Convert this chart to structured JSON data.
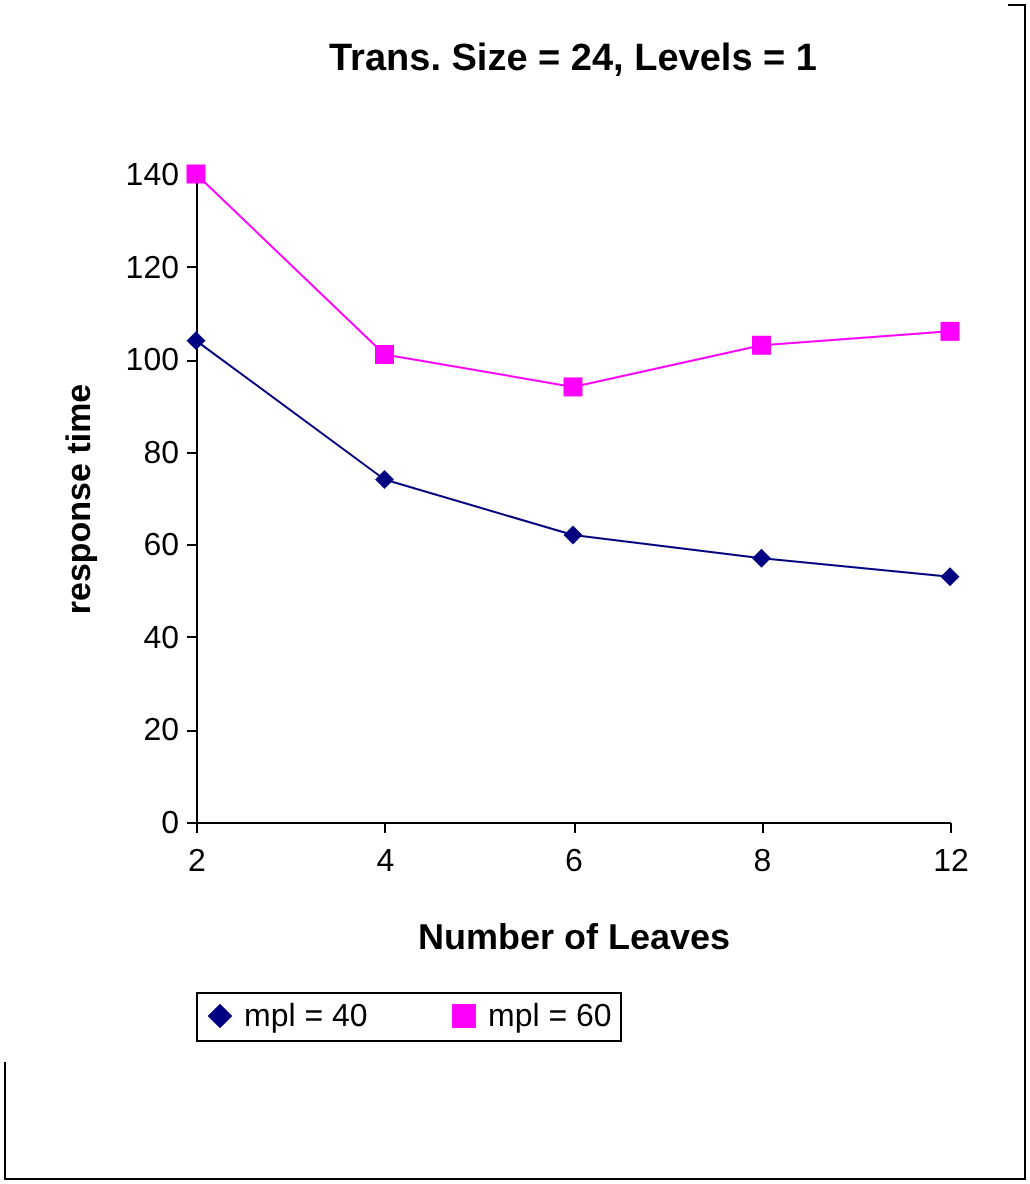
{
  "chart_data": {
    "type": "line",
    "title": "Trans. Size = 24, Levels = 1",
    "xlabel": "Number of Leaves",
    "ylabel": "response  time",
    "categories": [
      "2",
      "4",
      "6",
      "8",
      "12"
    ],
    "series": [
      {
        "name": "mpl = 40",
        "color": "#000080",
        "marker": "diamond",
        "values": [
          104,
          74,
          62,
          57,
          53
        ]
      },
      {
        "name": "mpl = 60",
        "color": "#ff00ff",
        "marker": "square",
        "values": [
          140,
          101,
          94,
          103,
          106
        ]
      }
    ],
    "ylim": [
      0,
      140
    ],
    "yticks": [
      0,
      20,
      40,
      60,
      80,
      100,
      120,
      140
    ],
    "grid": false,
    "legend": "bottom"
  }
}
